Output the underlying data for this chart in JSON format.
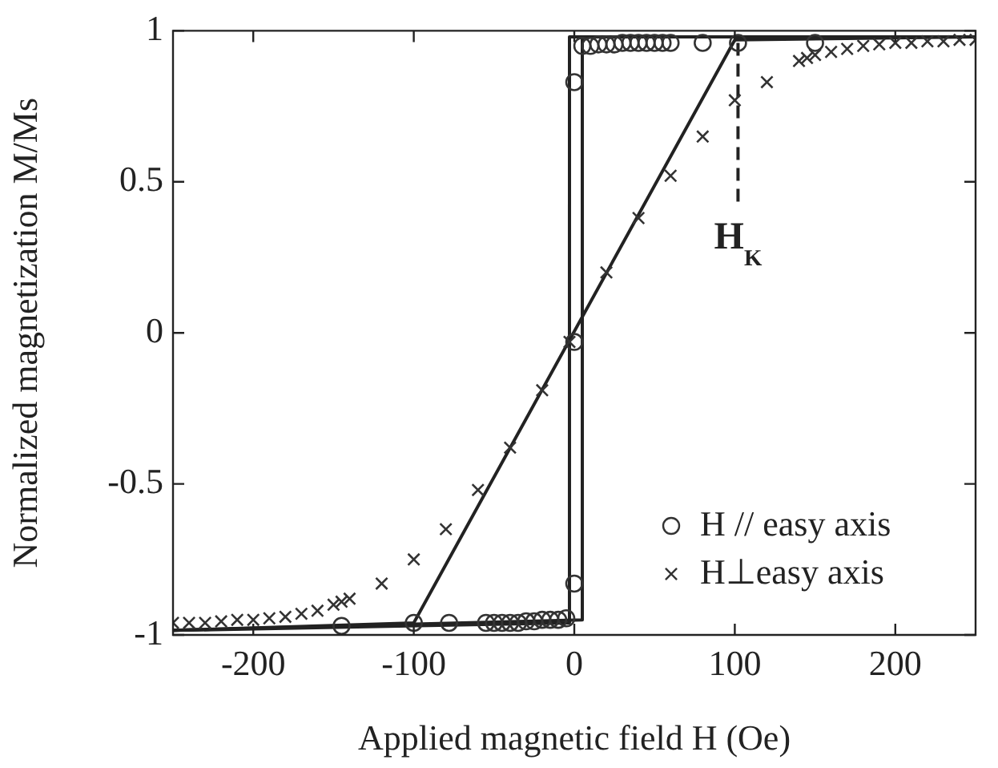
{
  "chart_data": {
    "type": "scatter",
    "xlabel": "Applied magnetic field H (Oe)",
    "ylabel": "Normalized magnetization M/Ms",
    "xlim": [
      -250,
      250
    ],
    "xticks": [
      -200,
      -100,
      0,
      100,
      200
    ],
    "ylim": [
      -1,
      1
    ],
    "yticks": [
      -1,
      -0.5,
      0,
      0.5,
      1
    ],
    "grid": false,
    "legend": "bottom right",
    "annotations": [
      "H$_{K}$"
    ],
    "series": [
      {
        "type": "line",
        "color": "#222222",
        "marker": "none",
        "line_style": "solid",
        "x": [
          -250,
          -100,
          100,
          250
        ],
        "values": [
          -0.985,
          -0.96,
          0.97,
          0.98
        ]
      },
      {
        "type": "line",
        "color": "#222222",
        "marker": "none",
        "line_style": "solid",
        "x": [
          -250,
          5,
          5,
          250
        ],
        "values": [
          -0.985,
          -0.95,
          0.98,
          0.98
        ]
      },
      {
        "type": "line",
        "color": "#222222",
        "marker": "none",
        "line_style": "solid",
        "x": [
          250,
          -3,
          -3,
          -250
        ],
        "values": [
          0.98,
          0.98,
          -0.96,
          -0.985
        ]
      },
      {
        "type": "line",
        "color": "#222222",
        "marker": "none",
        "line_style": "dashed",
        "x": [
          102,
          102
        ],
        "values": [
          0.96,
          0.43
        ]
      },
      {
        "name": "H // easy axis",
        "color": "#333333",
        "marker": "circle",
        "x": [
          -145,
          -100,
          -78,
          -55,
          -50,
          -45,
          -40,
          -35,
          -30,
          -25,
          -20,
          -15,
          -10,
          -5,
          0,
          0,
          0,
          5,
          10,
          15,
          20,
          25,
          30,
          35,
          40,
          45,
          50,
          55,
          60,
          80,
          102,
          150
        ],
        "values": [
          -0.97,
          -0.96,
          -0.96,
          -0.96,
          -0.96,
          -0.96,
          -0.96,
          -0.96,
          -0.955,
          -0.955,
          -0.95,
          -0.95,
          -0.95,
          -0.945,
          -0.83,
          -0.03,
          0.83,
          0.95,
          0.95,
          0.955,
          0.955,
          0.955,
          0.96,
          0.96,
          0.96,
          0.96,
          0.96,
          0.96,
          0.96,
          0.96,
          0.96,
          0.96
        ]
      },
      {
        "name": "H⊥easy axis",
        "color": "#333333",
        "marker": "cross",
        "x": [
          -250,
          -240,
          -230,
          -220,
          -210,
          -200,
          -190,
          -180,
          -170,
          -160,
          -150,
          -145,
          -140,
          -120,
          -100,
          -80,
          -60,
          -40,
          -20,
          -3,
          20,
          40,
          60,
          80,
          100,
          120,
          140,
          145,
          150,
          160,
          170,
          180,
          190,
          200,
          210,
          220,
          230,
          240,
          250
        ],
        "values": [
          -0.96,
          -0.96,
          -0.96,
          -0.955,
          -0.95,
          -0.95,
          -0.945,
          -0.94,
          -0.93,
          -0.92,
          -0.9,
          -0.89,
          -0.88,
          -0.83,
          -0.75,
          -0.65,
          -0.52,
          -0.38,
          -0.19,
          -0.03,
          0.2,
          0.38,
          0.52,
          0.65,
          0.77,
          0.83,
          0.9,
          0.91,
          0.92,
          0.93,
          0.94,
          0.95,
          0.955,
          0.96,
          0.96,
          0.965,
          0.965,
          0.97,
          0.97
        ]
      }
    ]
  }
}
